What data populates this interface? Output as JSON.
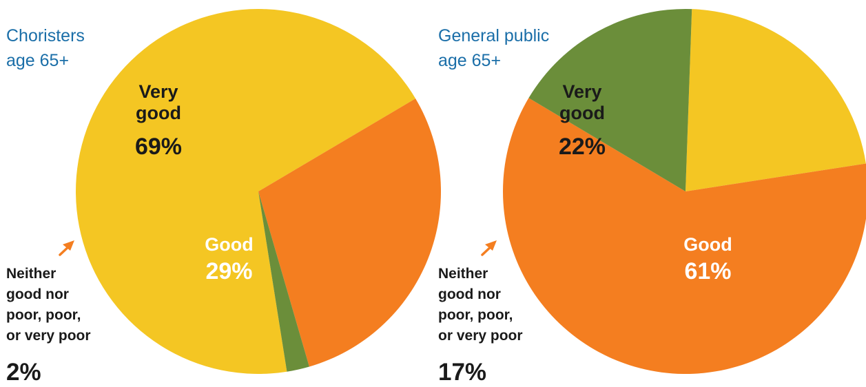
{
  "colors": {
    "very_good": "#f4c623",
    "good": "#f47e20",
    "neither": "#6b8e3a",
    "title": "#1a6ea8",
    "dark_text": "#1a1a1a",
    "light_text": "#ffffff"
  },
  "chart_data": [
    {
      "type": "pie",
      "title": "Choristers\nage 65+",
      "categories": [
        "Very good",
        "Good",
        "Neither good nor poor, poor, or very poor"
      ],
      "values": [
        69,
        29,
        2
      ],
      "labels": {
        "very_good": {
          "name": "Very\ngood",
          "value": "69%"
        },
        "good": {
          "name": "Good",
          "value": "29%"
        },
        "neither": {
          "name": "Neither\ngood nor\npoor, poor,\nor very poor",
          "value": "2%"
        }
      }
    },
    {
      "type": "pie",
      "title": "General public\nage 65+",
      "categories": [
        "Very good",
        "Good",
        "Neither good nor poor, poor, or very poor"
      ],
      "values": [
        22,
        61,
        17
      ],
      "labels": {
        "very_good": {
          "name": "Very\ngood",
          "value": "22%"
        },
        "good": {
          "name": "Good",
          "value": "61%"
        },
        "neither": {
          "name": "Neither\ngood nor\npoor, poor,\nor very poor",
          "value": "17%"
        }
      }
    }
  ]
}
